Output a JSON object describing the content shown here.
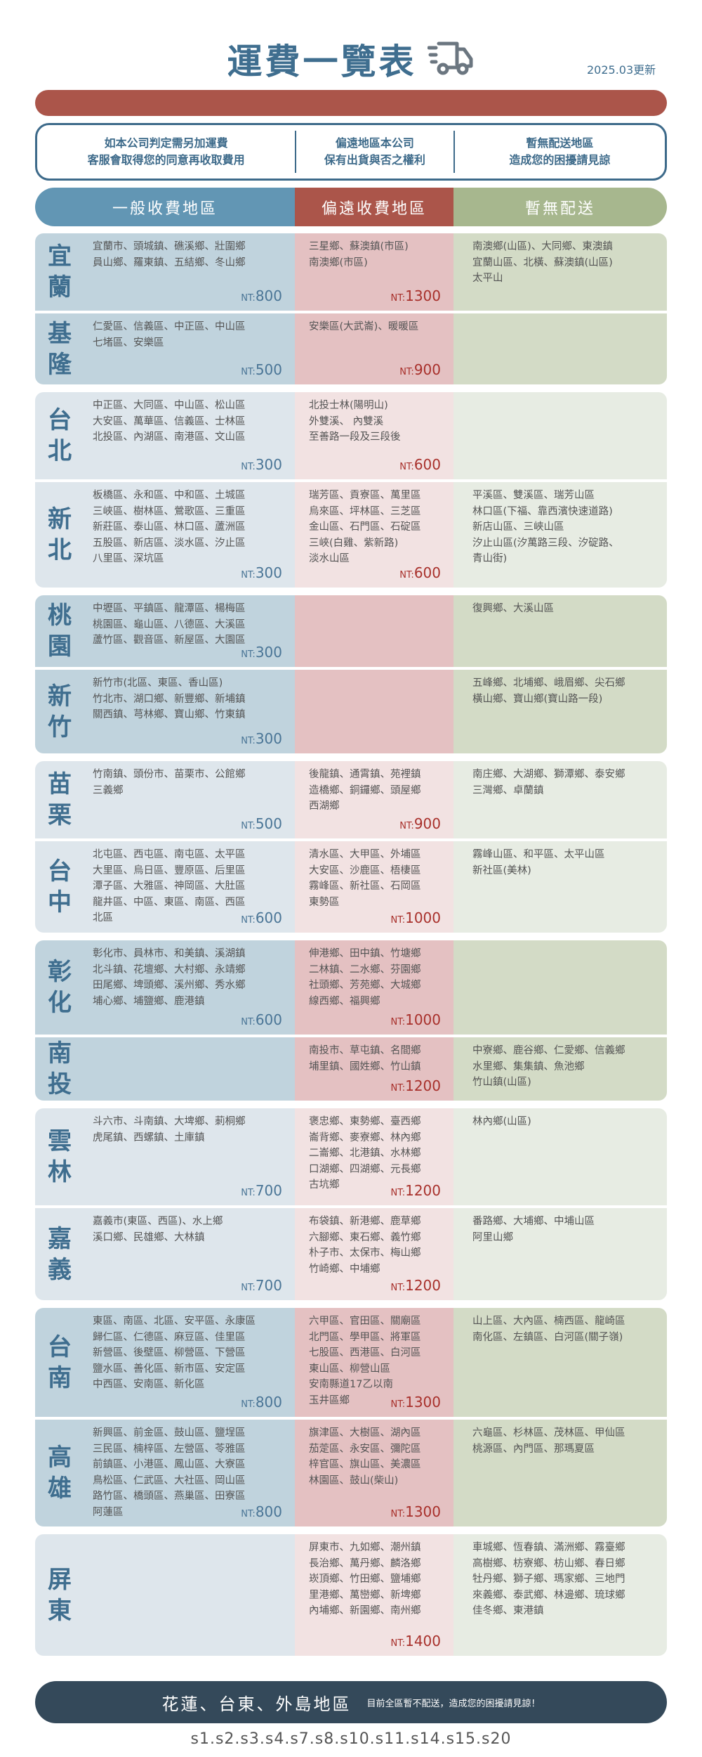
{
  "header": {
    "title": "運費一覽表",
    "updated": "2025.03更新",
    "icon": "truck-icon"
  },
  "notices": [
    {
      "lines": [
        "如本公司判定需另加運費",
        "客服會取得您的同意再收取費用"
      ]
    },
    {
      "lines": [
        "偏遠地區本公司",
        "保有出貨與否之權利"
      ]
    },
    {
      "lines": [
        "暫無配送地區",
        "造成您的困擾請見諒"
      ]
    }
  ],
  "columns": {
    "general": "一般收費地區",
    "remote": "偏遠收費地區",
    "none": "暫無配送"
  },
  "colors": {
    "title": "#3f6e8f",
    "red_bar": "#ab554a",
    "head_general": "#6296b4",
    "head_remote": "#ab554a",
    "head_none": "#a7b78e",
    "price_general": "#4a7596",
    "price_remote": "#a8302b",
    "bottom_bar": "#34495a"
  },
  "price_prefix": "NT:",
  "blocks": [
    {
      "shade": "dark",
      "regions": [
        {
          "name": [
            "宜",
            "蘭"
          ],
          "general": [
            "宜蘭市、頭城鎮、礁溪鄉、壯圍鄉",
            "員山鄉、羅東鎮、五結鄉、冬山鄉"
          ],
          "general_price": "800",
          "remote": [
            "三星鄉、蘇澳鎮(市區)",
            "南澳鄉(市區)"
          ],
          "remote_price": "1300",
          "none": [
            "南澳鄉(山區)、大同鄉、東澳鎮",
            "宜蘭山區、北橫、蘇澳鎮(山區)",
            "太平山"
          ]
        },
        {
          "name": [
            "基",
            "隆"
          ],
          "general": [
            "仁愛區、信義區、中正區、中山區",
            "七堵區、安樂區"
          ],
          "general_price": "500",
          "remote": [
            "安樂區(大武崙)、暖暖區"
          ],
          "remote_price": "900",
          "none": []
        }
      ]
    },
    {
      "shade": "light",
      "regions": [
        {
          "name": [
            "台",
            "北"
          ],
          "general": [
            "中正區、大同區、中山區、松山區",
            "大安區、萬華區、信義區、士林區",
            "北投區、內湖區、南港區、文山區"
          ],
          "general_price": "300",
          "remote": [
            "北投士林(陽明山)",
            "外雙溪、 內雙溪",
            "至善路一段及三段後"
          ],
          "remote_price": "600",
          "none": []
        },
        {
          "name": [
            "新",
            "北"
          ],
          "general": [
            "板橋區、永和區、中和區、土城區",
            "三峽區、樹林區、鶯歌區、三重區",
            "新莊區、泰山區、林口區、蘆洲區",
            "五股區、新店區、淡水區、汐止區",
            "八里區、深坑區"
          ],
          "general_price": "300",
          "remote": [
            "瑞芳區、貢寮區、萬里區",
            "烏來區、坪林區、三芝區",
            "金山區、石門區、石碇區",
            "三峽(白雞、紫新路)",
            "淡水山區"
          ],
          "remote_price": "600",
          "none": [
            "平溪區、雙溪區、瑞芳山區",
            "林口區(下福、靠西濱快速道路)",
            "新店山區、三峽山區",
            "汐止山區(汐萬路三段、汐碇路、",
            "青山街)"
          ]
        }
      ]
    },
    {
      "shade": "dark",
      "regions": [
        {
          "name": [
            "桃",
            "園"
          ],
          "general": [
            "中壢區、平鎮區、龍潭區、楊梅區",
            "桃園區、龜山區、八德區、大溪區",
            "蘆竹區、觀音區、新屋區、大園區"
          ],
          "general_price": "300",
          "remote": [],
          "remote_price": "",
          "none": [
            "復興鄉、大溪山區"
          ]
        },
        {
          "name": [
            "新",
            "竹"
          ],
          "general": [
            "新竹市(北區、東區、香山區)",
            "竹北市、湖口鄉、新豐鄉、新埔鎮",
            "關西鎮、芎林鄉、寶山鄉、竹東鎮"
          ],
          "general_price": "300",
          "remote": [],
          "remote_price": "",
          "none": [
            "五峰鄉、北埔鄉、峨眉鄉、尖石鄉",
            "橫山鄉、寶山鄉(寶山路一段)"
          ]
        }
      ]
    },
    {
      "shade": "light",
      "regions": [
        {
          "name": [
            "苗",
            "栗"
          ],
          "general": [
            "竹南鎮、頭份市、苗栗市、公館鄉",
            "三義鄉"
          ],
          "general_price": "500",
          "remote": [
            "後龍鎮、通霄鎮、苑裡鎮",
            "造橋鄉、銅鑼鄉、頭屋鄉",
            "西湖鄉"
          ],
          "remote_price": "900",
          "none": [
            "南庄鄉、大湖鄉、獅潭鄉、泰安鄉",
            "三灣鄉、卓蘭鎮"
          ]
        },
        {
          "name": [
            "台",
            "中"
          ],
          "general": [
            "北屯區、西屯區、南屯區、太平區",
            "大里區、烏日區、豐原區、后里區",
            "潭子區、大雅區、神岡區、大肚區",
            "龍井區、中區、東區、南區、西區",
            "北區"
          ],
          "general_price": "600",
          "remote": [
            "清水區、大甲區、外埔區",
            "大安區、沙鹿區、梧棲區",
            "霧峰區、新社區、石岡區",
            "東勢區"
          ],
          "remote_price": "1000",
          "none": [
            "霧峰山區、和平區、太平山區",
            "新社區(美林)"
          ]
        }
      ]
    },
    {
      "shade": "dark",
      "regions": [
        {
          "name": [
            "彰",
            "化"
          ],
          "general": [
            "彰化市、員林市、和美鎮、溪湖鎮",
            "北斗鎮、花壇鄉、大村鄉、永靖鄉",
            "田尾鄉、埤頭鄉、溪州鄉、秀水鄉",
            "埔心鄉、埔鹽鄉、鹿港鎮"
          ],
          "general_price": "600",
          "remote": [
            "伸港鄉、田中鎮、竹塘鄉",
            "二林鎮、二水鄉、芬園鄉",
            "社頭鄉、芳苑鄉、大城鄉",
            "線西鄉、福興鄉"
          ],
          "remote_price": "1000",
          "none": []
        },
        {
          "name": [
            "南",
            "投"
          ],
          "general": [],
          "general_price": "",
          "remote": [
            "南投市、草屯鎮、名間鄉",
            "埔里鎮、國姓鄉、竹山鎮"
          ],
          "remote_price": "1200",
          "none": [
            "中寮鄉、鹿谷鄉、仁愛鄉、信義鄉",
            "水里鄉、集集鎮、魚池鄉",
            "竹山鎮(山區)"
          ]
        }
      ]
    },
    {
      "shade": "light",
      "regions": [
        {
          "name": [
            "雲",
            "林"
          ],
          "general": [
            "斗六市、斗南鎮、大埤鄉、莿桐鄉",
            "虎尾鎮、西螺鎮、土庫鎮"
          ],
          "general_price": "700",
          "remote": [
            "褒忠鄉、東勢鄉、臺西鄉",
            "崙背鄉、麥寮鄉、林內鄉",
            "二崙鄉、北港鎮、水林鄉",
            "口湖鄉、四湖鄉、元長鄉",
            "古坑鄉"
          ],
          "remote_price": "1200",
          "none": [
            "林內鄉(山區)"
          ]
        },
        {
          "name": [
            "嘉",
            "義"
          ],
          "general": [
            "嘉義市(東區、西區)、水上鄉",
            "溪口鄉、民雄鄉、大林鎮"
          ],
          "general_price": "700",
          "remote": [
            "布袋鎮、新港鄉、鹿草鄉",
            "六腳鄉、東石鄉、義竹鄉",
            "朴子市、太保市、梅山鄉",
            "竹崎鄉、中埔鄉"
          ],
          "remote_price": "1200",
          "none": [
            "番路鄉、大埔鄉、中埔山區",
            "阿里山鄉"
          ]
        }
      ]
    },
    {
      "shade": "dark",
      "regions": [
        {
          "name": [
            "台",
            "南"
          ],
          "general": [
            "東區、南區、北區、安平區、永康區",
            "歸仁區、仁德區、麻豆區、佳里區",
            "新營區、後壁區、柳營區、下營區",
            "鹽水區、善化區、新市區、安定區",
            "中西區、安南區、新化區"
          ],
          "general_price": "800",
          "remote": [
            "六甲區、官田區、關廟區",
            "北門區、學甲區、將軍區",
            "七股區、西港區、白河區",
            "東山區、柳營山區",
            "安南縣道17乙以南",
            "玉井區鄉"
          ],
          "remote_price": "1300",
          "none": [
            "山上區、大內區、楠西區、龍崎區",
            "南化區、左鎮區、白河區(關子嶺)"
          ]
        },
        {
          "name": [
            "高",
            "雄"
          ],
          "general": [
            "新興區、前金區、鼓山區、鹽埕區",
            "三民區、楠梓區、左營區、苓雅區",
            "前鎮區、小港區、鳳山區、大寮區",
            "鳥松區、仁武區、大社區、岡山區",
            "路竹區、橋頭區、燕巢區、田寮區",
            "阿蓮區"
          ],
          "general_price": "800",
          "remote": [
            "旗津區、大樹區、湖內區",
            "茄萣區、永安區、彌陀區",
            "梓官區、旗山區、美濃區",
            "林園區、鼓山(柴山)"
          ],
          "remote_price": "1300",
          "none": [
            "六龜區、杉林區、茂林區、甲仙區",
            "桃源區、內門區、那瑪夏區"
          ]
        }
      ]
    },
    {
      "shade": "light",
      "regions": [
        {
          "name": [
            "屏",
            "東"
          ],
          "general": [],
          "general_price": "",
          "remote": [
            "屏東市、九如鄉、潮州鎮",
            "長治鄉、萬丹鄉、麟洛鄉",
            "崁頂鄉、竹田鄉、鹽埔鄉",
            "里港鄉、萬巒鄉、新埤鄉",
            "內埔鄉、新園鄉、南州鄉"
          ],
          "remote_price": "1400",
          "none": [
            "車城鄉、恆春鎮、滿洲鄉、霧臺鄉",
            "高樹鄉、枋寮鄉、枋山鄉、春日鄉",
            "牡丹鄉、獅子鄉、瑪家鄉、三地門",
            "來義鄉、泰武鄉、林邊鄉、琉球鄉",
            "佳冬鄉、東港鎮"
          ]
        }
      ]
    }
  ],
  "bottom": {
    "main": "花蓮、台東、外島地區",
    "sub": "目前全區暫不配送，造成您的困擾請見諒！"
  },
  "codes": "s1.s2.s3.s4.s7.s8.s10.s11.s14.s15.s20"
}
